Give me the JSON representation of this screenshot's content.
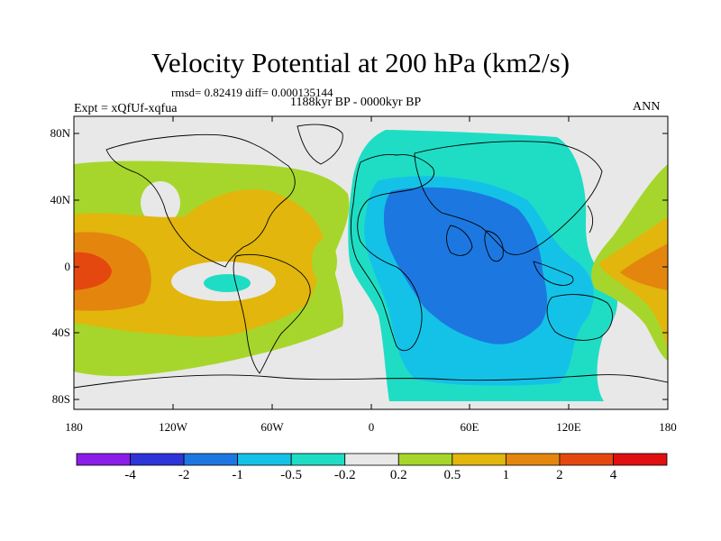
{
  "title": "Velocity Potential at 200 hPa (km2/s)",
  "stats_line": "rmsd= 0.82419 diff= 0.000135144",
  "period_line": "1188kyr BP - 0000kyr BP",
  "experiment_label": "Expt = xQfUf-xqfua",
  "season_label": "ANN",
  "axes": {
    "y_ticks": [
      "80N",
      "40N",
      "0",
      "40S",
      "80S"
    ],
    "x_ticks": [
      "180",
      "120W",
      "60W",
      "0",
      "60E",
      "120E",
      "180"
    ]
  },
  "colorbar": {
    "labels": [
      "-4",
      "-2",
      "-1",
      "-0.5",
      "-0.2",
      "0.2",
      "0.5",
      "1",
      "2",
      "4"
    ],
    "colors": [
      "#8a1de8",
      "#2f34d8",
      "#1c78e0",
      "#14c2e8",
      "#1fddc4",
      "#e8e8e8",
      "#a6d62c",
      "#e2b60c",
      "#e4860e",
      "#e4480e",
      "#e01010"
    ]
  }
}
